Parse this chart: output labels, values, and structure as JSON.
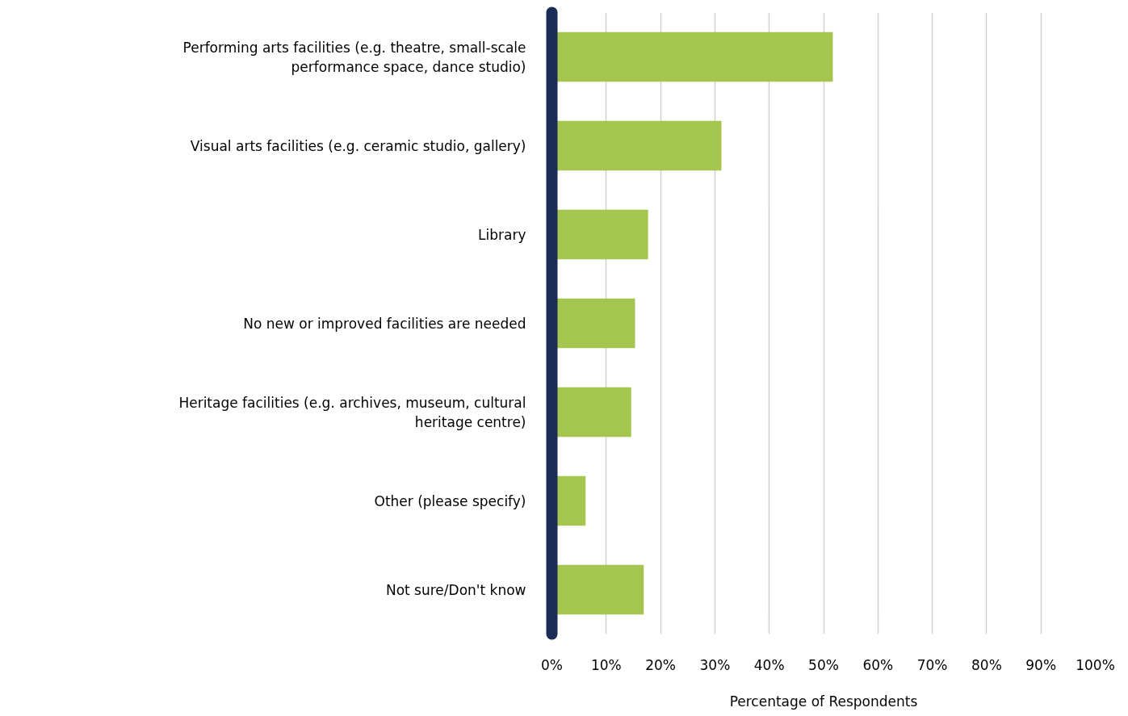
{
  "chart_data": {
    "type": "bar",
    "orientation": "horizontal",
    "xlabel": "Percentage of Respondents",
    "categories": [
      "Performing arts facilities (e.g. theatre, small-scale performance space, dance studio)",
      "Visual arts facilities (e.g. ceramic studio, gallery)",
      "Library",
      "No new or improved facilities are needed",
      "Heritage facilities (e.g. archives, museum, cultural heritage centre)",
      "Other (please specify)",
      "Not sure/Don't know"
    ],
    "values": [
      51.7,
      31.2,
      17.7,
      15.3,
      14.6,
      6.2,
      16.9
    ],
    "color": "#a4c64e",
    "xlim": [
      0,
      100
    ],
    "xticks": [
      {
        "value": 0,
        "label": "0%"
      },
      {
        "value": 10,
        "label": "10%"
      },
      {
        "value": 20,
        "label": "20%"
      },
      {
        "value": 30,
        "label": "30%"
      },
      {
        "value": 40,
        "label": "40%"
      },
      {
        "value": 50,
        "label": "50%"
      },
      {
        "value": 60,
        "label": "60%"
      },
      {
        "value": 70,
        "label": "70%"
      },
      {
        "value": 80,
        "label": "80%"
      },
      {
        "value": 90,
        "label": "90%"
      },
      {
        "value": 100,
        "label": "100%"
      }
    ],
    "grid": "x"
  }
}
